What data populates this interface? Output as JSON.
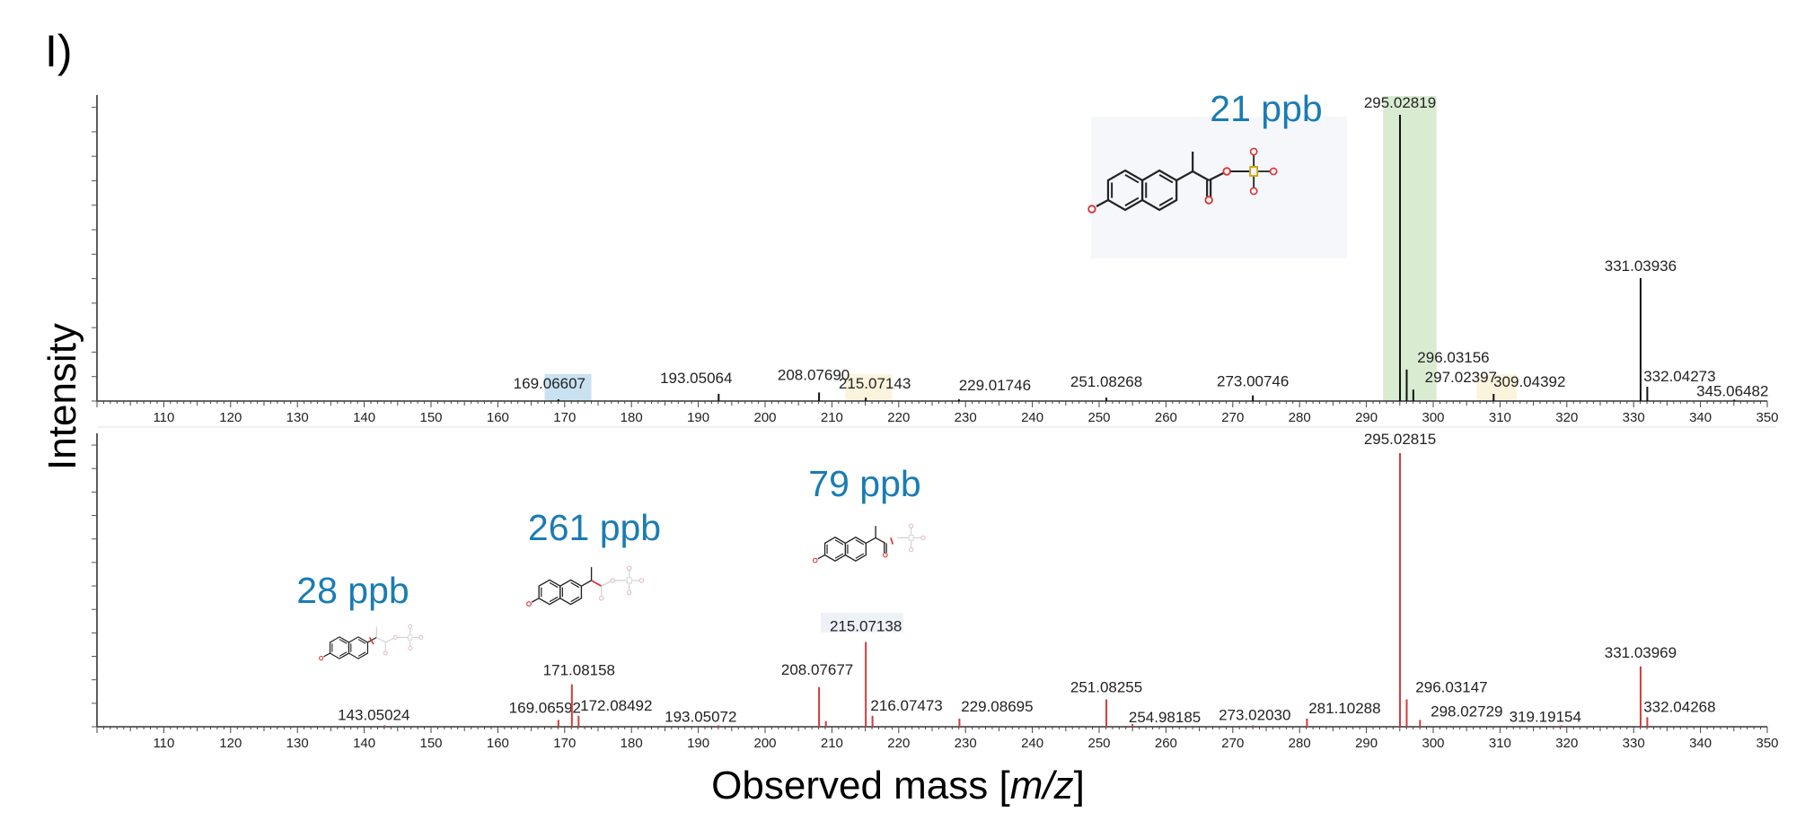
{
  "panel_label": "I)",
  "colors": {
    "experimental": "#111111",
    "predicted": "#d23c3c",
    "ppb_text": "#1a7cb4",
    "highlight_green": "#d9ecd2",
    "highlight_blue": "#c9e2f2",
    "highlight_yellow": "#fbf4dc",
    "structure_box": "#f5f7fa"
  },
  "chart_data": [
    {
      "type": "bar",
      "title": "",
      "xlabel": "Observed mass [m/z]",
      "ylabel": "Intensity",
      "xlim": [
        100,
        350
      ],
      "ylim": [
        0,
        100
      ],
      "xticks": [
        110,
        120,
        130,
        140,
        150,
        160,
        170,
        180,
        190,
        200,
        210,
        220,
        230,
        240,
        250,
        260,
        270,
        280,
        290,
        300,
        310,
        320,
        330,
        340,
        350
      ],
      "series": [
        {
          "peaks": [
            {
              "mz": 169.06607,
              "intensity": 0.6,
              "label": "169.06607"
            },
            {
              "mz": 193.05064,
              "intensity": 2.5,
              "label": "193.05064"
            },
            {
              "mz": 208.0769,
              "intensity": 3,
              "label": "208.07690"
            },
            {
              "mz": 215.07143,
              "intensity": 1.2,
              "label": "215.07143"
            },
            {
              "mz": 229.01746,
              "intensity": 0.6,
              "label": "229.01746"
            },
            {
              "mz": 251.08268,
              "intensity": 1.2,
              "label": "251.08268"
            },
            {
              "mz": 273.00746,
              "intensity": 2,
              "label": "273.00746"
            },
            {
              "mz": 295.02819,
              "intensity": 100,
              "label": "295.02819"
            },
            {
              "mz": 296.03156,
              "intensity": 11,
              "label": "296.03156"
            },
            {
              "mz": 297.02397,
              "intensity": 4,
              "label": "297.02397"
            },
            {
              "mz": 309.04392,
              "intensity": 2.5,
              "label": "309.04392"
            },
            {
              "mz": 331.03936,
              "intensity": 43,
              "label": "331.03936"
            },
            {
              "mz": 332.04273,
              "intensity": 5,
              "label": "332.04273"
            },
            {
              "mz": 345.06482,
              "intensity": 0.5,
              "label": "345.06482"
            }
          ]
        }
      ],
      "highlights": [
        {
          "mz_center": 170.5,
          "width": 7,
          "color": "blue"
        },
        {
          "mz_center": 215.5,
          "width": 7,
          "color": "yellow"
        },
        {
          "mz_center": 296.5,
          "width": 8,
          "color": "green"
        },
        {
          "mz_center": 309.5,
          "width": 6,
          "color": "yellow"
        }
      ],
      "annotations": [
        {
          "text": "21 ppb",
          "structure": "naphthalene-propanoyl-sulfate-full"
        }
      ]
    },
    {
      "type": "bar",
      "title": "",
      "xlabel": "Observed mass [m/z]",
      "ylabel": "Intensity",
      "xlim": [
        100,
        350
      ],
      "ylim": [
        0,
        100
      ],
      "xticks": [
        110,
        120,
        130,
        140,
        150,
        160,
        170,
        180,
        190,
        200,
        210,
        220,
        230,
        240,
        250,
        260,
        270,
        280,
        290,
        300,
        310,
        320,
        330,
        340,
        350
      ],
      "series": [
        {
          "peaks": [
            {
              "mz": 143.05024,
              "intensity": 0.5,
              "label": "143.05024"
            },
            {
              "mz": 169.06592,
              "intensity": 2.5,
              "label": "169.06592"
            },
            {
              "mz": 171.08158,
              "intensity": 15.5,
              "label": "171.08158"
            },
            {
              "mz": 172.08492,
              "intensity": 4,
              "label": "172.08492"
            },
            {
              "mz": 193.05072,
              "intensity": 0.5,
              "label": "193.05072"
            },
            {
              "mz": 208.07677,
              "intensity": 14.5,
              "label": "208.07677"
            },
            {
              "mz": 209.1,
              "intensity": 2,
              "label": ""
            },
            {
              "mz": 215.07138,
              "intensity": 31,
              "label": "215.07138"
            },
            {
              "mz": 216.07473,
              "intensity": 4,
              "label": "216.07473"
            },
            {
              "mz": 229.08695,
              "intensity": 3,
              "label": "229.08695"
            },
            {
              "mz": 251.08255,
              "intensity": 10,
              "label": "251.08255"
            },
            {
              "mz": 254.98185,
              "intensity": 1,
              "label": "254.98185"
            },
            {
              "mz": 273.0203,
              "intensity": 0.5,
              "label": "273.02030"
            },
            {
              "mz": 281.10288,
              "intensity": 3,
              "label": "281.10288"
            },
            {
              "mz": 295.02815,
              "intensity": 100,
              "label": "295.02815"
            },
            {
              "mz": 296.03147,
              "intensity": 10,
              "label": "296.03147"
            },
            {
              "mz": 298.02729,
              "intensity": 2.5,
              "label": "298.02729"
            },
            {
              "mz": 319.19154,
              "intensity": 0.5,
              "label": "319.19154"
            },
            {
              "mz": 331.03969,
              "intensity": 22,
              "label": "331.03969"
            },
            {
              "mz": 332.04268,
              "intensity": 3.5,
              "label": "332.04268"
            }
          ]
        }
      ],
      "annotations": [
        {
          "text": "28 ppb",
          "structure": "fragment-naphthyl"
        },
        {
          "text": "261 ppb",
          "structure": "fragment-naphthyl-ethyl"
        },
        {
          "text": "79 ppb",
          "structure": "fragment-naphthyl-propanoyl"
        }
      ]
    }
  ]
}
